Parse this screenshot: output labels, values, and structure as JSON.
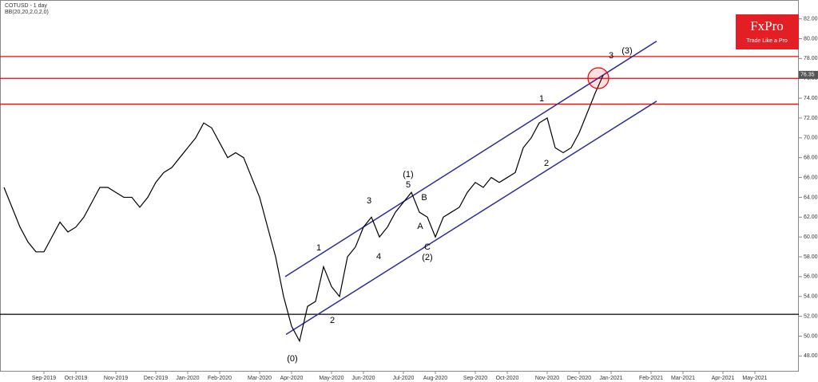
{
  "chart_data": {
    "type": "line",
    "title": "COTUSD - 1 day",
    "subtitle": "BB(20,20,2,0,2,0)",
    "logo": {
      "brand": "FxPro",
      "tagline": "Trade Like a Pro"
    },
    "categories": [
      null,
      null,
      null,
      null,
      null,
      "Sep-2019",
      null,
      null,
      null,
      "Oct-2019",
      null,
      null,
      null,
      null,
      "Nov-2019",
      null,
      null,
      null,
      null,
      "Dec-2019",
      null,
      null,
      null,
      "Jan-2020",
      null,
      null,
      null,
      "Feb-2020",
      null,
      null,
      null,
      null,
      "Mar-2020",
      null,
      null,
      null,
      "Apr-2020",
      null,
      null,
      null,
      null,
      "May-2020",
      null,
      null,
      null,
      "Jun-2020",
      null,
      null,
      null,
      null,
      "Jul-2020",
      null,
      null,
      null,
      "Aug-2020",
      null,
      null,
      null,
      null,
      "Sep-2020",
      null,
      null,
      null,
      "Oct-2020",
      null,
      null,
      null,
      null,
      "Nov-2020",
      null,
      null,
      null,
      "Dec-2020",
      null,
      null,
      null,
      "Jan-2021",
      null,
      null,
      null,
      null,
      "Feb-2021",
      null,
      null,
      null,
      "Mar-2021",
      null,
      null,
      null,
      null,
      "Apr-2021",
      null,
      null,
      null,
      "May-2021",
      null,
      null,
      null,
      null,
      null
    ],
    "series": [
      {
        "name": "COTUSD",
        "color": "#000000",
        "values": [
          65,
          63,
          61,
          59.5,
          58.5,
          58.5,
          60,
          61.5,
          60.5,
          61,
          62,
          63.5,
          65,
          65,
          64.5,
          64,
          64,
          63,
          64,
          65.5,
          66.5,
          67,
          68,
          69,
          70,
          71.5,
          71,
          69.5,
          68,
          68.5,
          68,
          66,
          64,
          61,
          58,
          54,
          51,
          49.5,
          53,
          53.5,
          57,
          55,
          54,
          58,
          59,
          61,
          62,
          60,
          61,
          62.5,
          63.5,
          64.5,
          62.5,
          62,
          60,
          62,
          62.5,
          63,
          64.5,
          65.5,
          65,
          66,
          65.5,
          66,
          66.5,
          69,
          70,
          71.5,
          72,
          69,
          68.5,
          69,
          70.5,
          72.5,
          74.5,
          76.3,
          null,
          null,
          null,
          null,
          null,
          null,
          null,
          null,
          null,
          null,
          null,
          null,
          null,
          null,
          null,
          null,
          null,
          null,
          null,
          null,
          null,
          null,
          null,
          null
        ]
      }
    ],
    "ylim": [
      46.5,
      83.9
    ],
    "yticks": [
      {
        "value": 48,
        "label": "48.00"
      },
      {
        "value": 50,
        "label": "50.00"
      },
      {
        "value": 52,
        "label": "52.00"
      },
      {
        "value": 54,
        "label": "54.00"
      },
      {
        "value": 56,
        "label": "56.00"
      },
      {
        "value": 58,
        "label": "58.00"
      },
      {
        "value": 60,
        "label": "60.00"
      },
      {
        "value": 62,
        "label": "62.00"
      },
      {
        "value": 64,
        "label": "64.00"
      },
      {
        "value": 66,
        "label": "66.00"
      },
      {
        "value": 68,
        "label": "68.00"
      },
      {
        "value": 70,
        "label": "70.00"
      },
      {
        "value": 72,
        "label": "72.00"
      },
      {
        "value": 74,
        "label": "74.00"
      },
      {
        "value": 76,
        "label": "76.00"
      },
      {
        "value": 78,
        "label": "78.00"
      },
      {
        "value": 80,
        "label": "80.00"
      },
      {
        "value": 82,
        "label": "82.00"
      }
    ],
    "levels": [
      {
        "value": 78.2,
        "color": "#ff0000"
      },
      {
        "value": 76.0,
        "color": "#ff0000"
      },
      {
        "value": 73.4,
        "color": "#ff0000"
      },
      {
        "value": 52.2,
        "color": "#000000"
      }
    ],
    "channel": {
      "color": "#2b2b9e",
      "upper": {
        "x": [
          35.2,
          81.7
        ],
        "values": [
          56.0,
          79.75
        ]
      },
      "lower": {
        "x": [
          35.3,
          81.7
        ],
        "values": [
          50.17,
          73.7
        ]
      }
    },
    "last_price": {
      "value": 76.35,
      "label": "76.35"
    },
    "annotations": [
      "(0)",
      "1",
      "2",
      "3",
      "4",
      "5",
      "(1)",
      "A",
      "B",
      "C",
      "(2)",
      "1",
      "2",
      "3",
      "(3)"
    ]
  }
}
